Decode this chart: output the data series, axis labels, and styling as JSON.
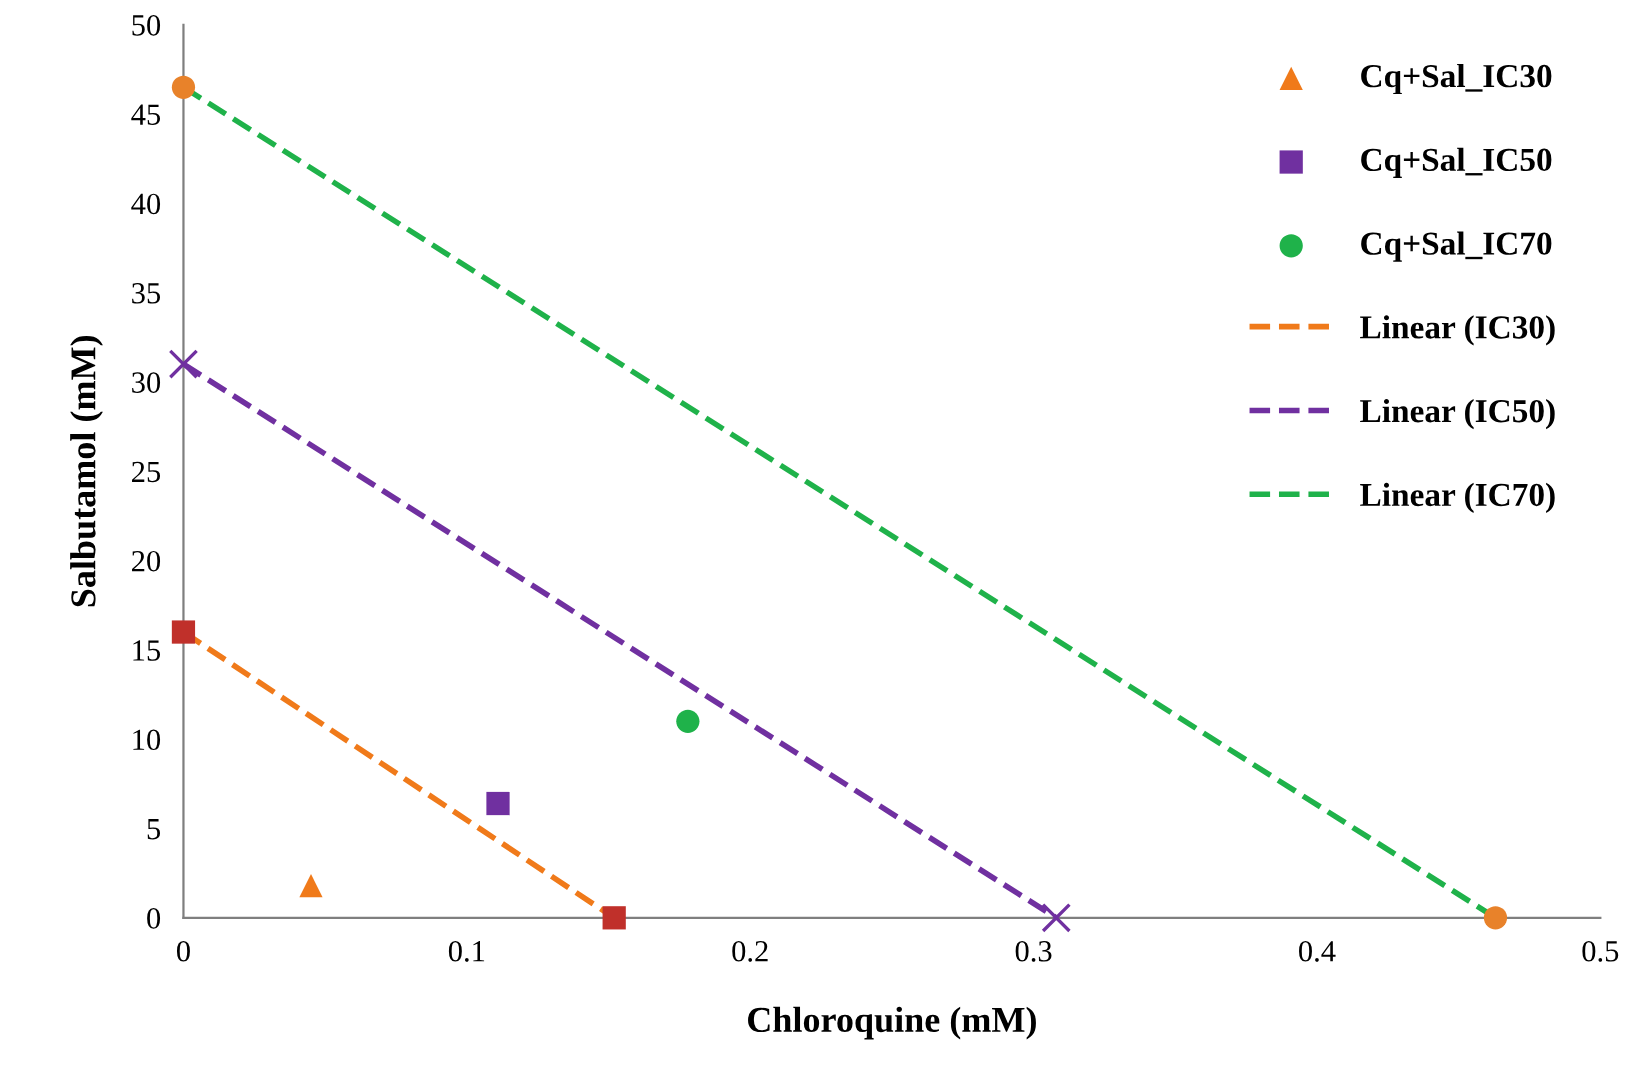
{
  "chart_data": {
    "type": "scatter",
    "xlabel": "Chloroquine (mM)",
    "ylabel": "Salbutamol (mM)",
    "xlim": [
      0,
      0.5
    ],
    "ylim": [
      0,
      50
    ],
    "xticks": [
      0,
      0.1,
      0.2,
      0.3,
      0.4,
      0.5
    ],
    "yticks": [
      0,
      5,
      10,
      15,
      20,
      25,
      30,
      35,
      40,
      45,
      50
    ],
    "grid": false,
    "legend": "top right",
    "series": [
      {
        "name": "Cq+Sal_IC30",
        "color": "#f07a1a",
        "marker": "triangle",
        "x": [
          0.045
        ],
        "values": [
          1.8
        ]
      },
      {
        "name": "Cq+Sal_IC50",
        "color": "#7030a0",
        "marker": "square",
        "x": [
          0.111
        ],
        "values": [
          6.4
        ]
      },
      {
        "name": "Cq+Sal_IC70",
        "color": "#1fb24a",
        "marker": "circle",
        "x": [
          0.178
        ],
        "values": [
          11.0
        ]
      },
      {
        "type": "line",
        "name": "Linear (IC30)",
        "color": "#f07a1a",
        "line_style": "dashed",
        "marker": "none",
        "x": [
          0,
          0.152
        ],
        "values": [
          16,
          0
        ]
      },
      {
        "type": "line",
        "name": "Linear (IC50)",
        "color": "#7030a0",
        "line_style": "dashed",
        "marker": "none",
        "x": [
          0,
          0.308
        ],
        "values": [
          31,
          0
        ]
      },
      {
        "type": "line",
        "name": "Linear (IC70)",
        "color": "#1fb24a",
        "line_style": "dashed",
        "marker": "none",
        "x": [
          0,
          0.463
        ],
        "values": [
          46.5,
          0
        ]
      },
      {
        "color": "#c0302a",
        "marker": "square",
        "x": [
          0,
          0.152
        ],
        "values": [
          16,
          0
        ]
      },
      {
        "color": "#7030a0",
        "marker": "cross",
        "x": [
          0,
          0.308
        ],
        "values": [
          31,
          0
        ]
      },
      {
        "color": "#e8822a",
        "marker": "circle",
        "x": [
          0,
          0.463
        ],
        "values": [
          46.5,
          0
        ]
      }
    ]
  }
}
